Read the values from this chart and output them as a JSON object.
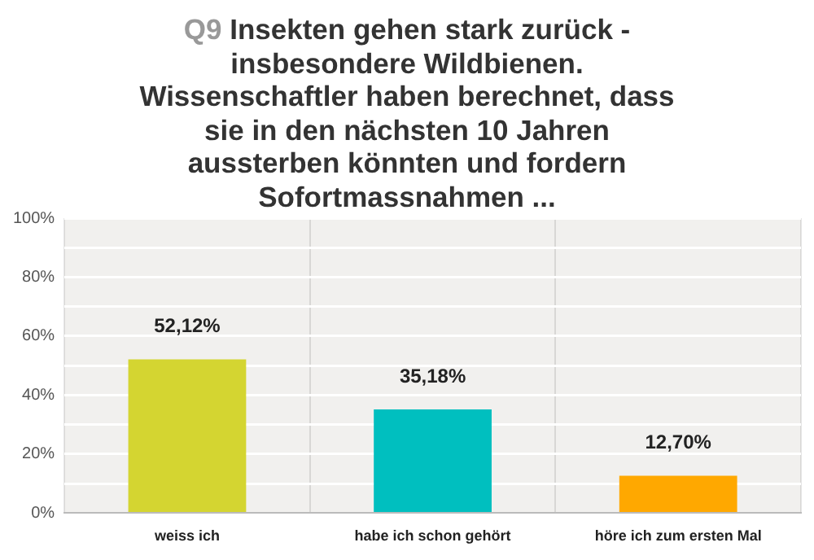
{
  "chart_data": {
    "type": "bar",
    "title": "Q9 Insekten gehen stark zurück - insbesondere Wildbienen. Wissenschaftler haben berechnet, dass sie in den nächsten 10 Jahren aussterben könnten und fordern Sofortmassnahmen ...",
    "categories": [
      "weiss ich",
      "habe ich schon gehört",
      "höre ich zum ersten Mal"
    ],
    "values": [
      52.12,
      35.18,
      12.7
    ],
    "colors": [
      "#d4d531",
      "#00bfbf",
      "#ffa800"
    ],
    "value_labels": [
      "52,12%",
      "35,18%",
      "12,70%"
    ],
    "ylim": [
      0,
      100
    ],
    "yticks": [
      {
        "value": 0,
        "label": "0%"
      },
      {
        "value": 10,
        "label": null
      },
      {
        "value": 20,
        "label": "20%"
      },
      {
        "value": 30,
        "label": null
      },
      {
        "value": 40,
        "label": "40%"
      },
      {
        "value": 50,
        "label": null
      },
      {
        "value": 60,
        "label": "60%"
      },
      {
        "value": 70,
        "label": null
      },
      {
        "value": 80,
        "label": "80%"
      },
      {
        "value": 90,
        "label": null
      },
      {
        "value": 100,
        "label": "100%"
      }
    ],
    "grid": true,
    "legend": false
  }
}
